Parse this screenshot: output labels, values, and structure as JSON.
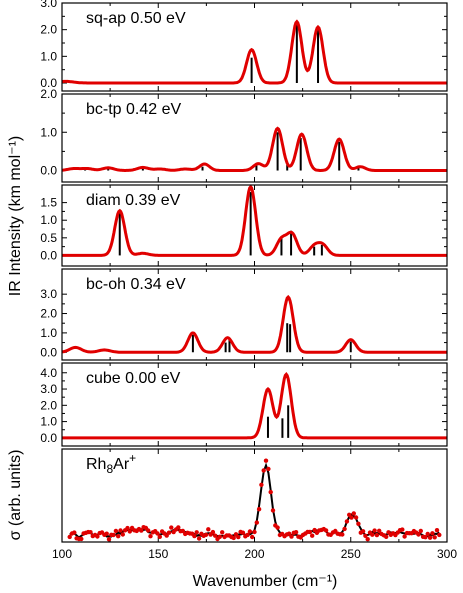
{
  "chart_data": {
    "type": "line",
    "x_range": [
      100,
      300
    ],
    "x_ticks": [
      100,
      150,
      200,
      250,
      300
    ],
    "xlabel": "Wavenumber (cm⁻¹)",
    "ylabel_calc": "IR Intensity (km mol⁻¹)",
    "ylabel_exp": "σ (arb. units)",
    "panels": [
      {
        "name": "sq-ap 0.50 eV",
        "ylim": [
          -0.3,
          3.0
        ],
        "y_ticks": [
          "0.0",
          "1.0",
          "2.0",
          "3.0"
        ],
        "y_tick_values": [
          0,
          1,
          2,
          3
        ],
        "sticks": [
          [
            198.5,
            0.95
          ],
          [
            222,
            2.25
          ],
          [
            233,
            2.0
          ]
        ],
        "peaks": [
          [
            198.5,
            1.25,
            2.6
          ],
          [
            222,
            2.3,
            2.6
          ],
          [
            233,
            2.1,
            2.6
          ],
          [
            102,
            0.06,
            4
          ]
        ]
      },
      {
        "name": "bc-tp 0.42 eV",
        "ylim": [
          -0.3,
          2.0
        ],
        "y_ticks": [
          "0.0",
          "1.0",
          "2.0"
        ],
        "y_tick_values": [
          0,
          1,
          2
        ],
        "sticks": [
          [
            112,
            0.05
          ],
          [
            124,
            0.06
          ],
          [
            142,
            0.05
          ],
          [
            173,
            0.1
          ],
          [
            201,
            0.15
          ],
          [
            212,
            1.0
          ],
          [
            217,
            0.15
          ],
          [
            224,
            0.85
          ],
          [
            244,
            0.75
          ],
          [
            254,
            0.1
          ]
        ],
        "peaks": [
          [
            106,
            0.05,
            3
          ],
          [
            113,
            0.05,
            3
          ],
          [
            124,
            0.07,
            3
          ],
          [
            142,
            0.08,
            3
          ],
          [
            151,
            0.04,
            3
          ],
          [
            164,
            0.04,
            3
          ],
          [
            174,
            0.17,
            2.6
          ],
          [
            202,
            0.18,
            2.6
          ],
          [
            212,
            1.1,
            2.6
          ],
          [
            224.5,
            0.95,
            2.6
          ],
          [
            244,
            0.82,
            2.6
          ],
          [
            255,
            0.1,
            2.6
          ]
        ]
      },
      {
        "name": "diam 0.39 eV",
        "ylim": [
          -0.3,
          2.0
        ],
        "y_ticks": [
          "0.0",
          "0.5",
          "1.0",
          "1.5"
        ],
        "y_tick_values": [
          0,
          0.5,
          1,
          1.5
        ],
        "sticks": [
          [
            130,
            1.2
          ],
          [
            198,
            1.8
          ],
          [
            214,
            0.5
          ],
          [
            219,
            0.7
          ],
          [
            231,
            0.25
          ],
          [
            235,
            0.3
          ]
        ],
        "peaks": [
          [
            130,
            1.27,
            2.6
          ],
          [
            142,
            0.06,
            3
          ],
          [
            198,
            1.95,
            2.6
          ],
          [
            214,
            0.45,
            2.6
          ],
          [
            219.5,
            0.6,
            2.6
          ],
          [
            231,
            0.25,
            2.6
          ],
          [
            235.5,
            0.28,
            2.6
          ]
        ]
      },
      {
        "name": "bc-oh 0.34 eV",
        "ylim": [
          -0.4,
          4.3
        ],
        "y_ticks": [
          "0.0",
          "1.0",
          "2.0",
          "3.0"
        ],
        "y_tick_values": [
          0,
          1,
          2,
          3
        ],
        "sticks": [
          [
            168,
            0.9
          ],
          [
            185,
            0.5
          ],
          [
            187,
            0.7
          ],
          [
            217,
            1.5
          ],
          [
            218.5,
            1.45
          ],
          [
            250,
            0.55
          ]
        ],
        "peaks": [
          [
            107,
            0.25,
            3
          ],
          [
            122,
            0.12,
            3
          ],
          [
            168,
            1.0,
            2.6
          ],
          [
            186,
            0.75,
            2.6
          ],
          [
            217.5,
            2.85,
            2.6
          ],
          [
            250,
            0.65,
            2.6
          ]
        ]
      },
      {
        "name": "cube 0.00 eV",
        "ylim": [
          -0.5,
          4.6
        ],
        "y_ticks": [
          "0.0",
          "1.0",
          "2.0",
          "3.0",
          "4.0"
        ],
        "y_tick_values": [
          0,
          1,
          2,
          3,
          4
        ],
        "sticks": [
          [
            207,
            1.3
          ],
          [
            214.5,
            1.2
          ],
          [
            217.5,
            2.0
          ]
        ],
        "peaks": [
          [
            207,
            3.0,
            2.6
          ],
          [
            216.5,
            3.9,
            2.6
          ]
        ]
      }
    ],
    "experiment": {
      "name": "Rh8Ar+",
      "ylim": [
        -0.1,
        1.1
      ],
      "peaks": [
        [
          206,
          0.95,
          2.4
        ],
        [
          250.5,
          0.28,
          2.6
        ],
        [
          138,
          0.06,
          4
        ],
        [
          160,
          0.05,
          4
        ],
        [
          232,
          0.05,
          4
        ]
      ]
    }
  }
}
